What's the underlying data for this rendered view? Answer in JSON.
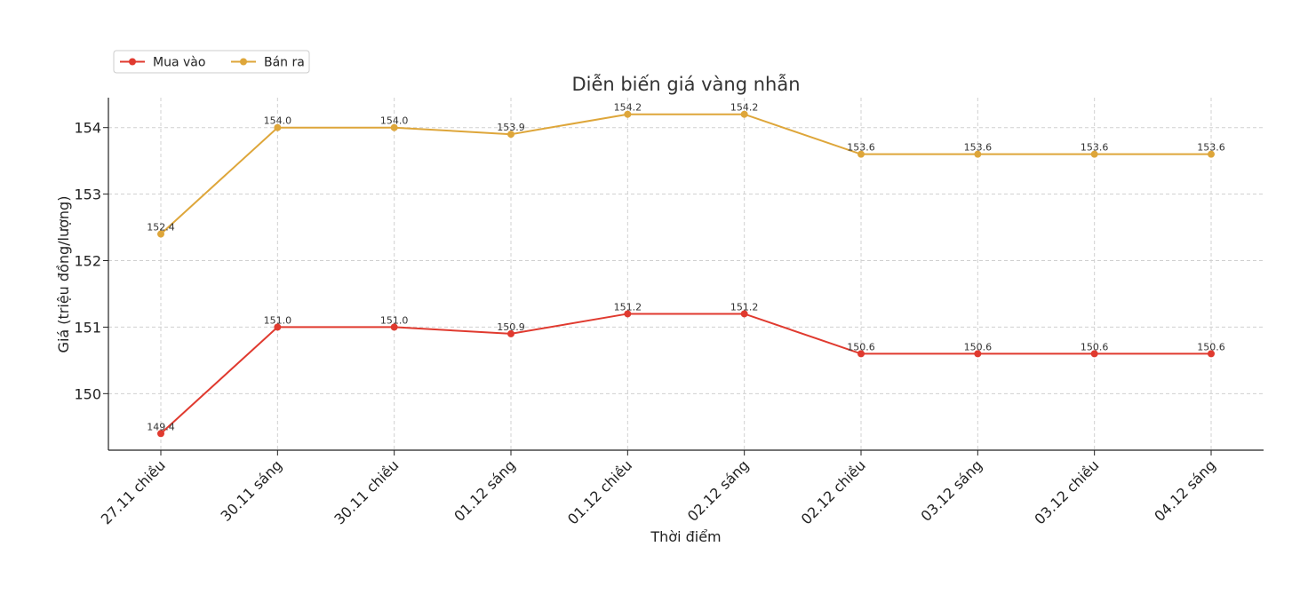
{
  "chart_data": {
    "type": "line",
    "title": "Diễn biến giá vàng nhẫn",
    "xlabel": "Thời điểm",
    "ylabel": "Giá (triệu đồng/lượng)",
    "categories": [
      "27.11 chiều",
      "30.11 sáng",
      "30.11 chiều",
      "01.12 sáng",
      "01.12 chiều",
      "02.12 sáng",
      "02.12 chiều",
      "03.12 sáng",
      "03.12 chiều",
      "04.12 sáng"
    ],
    "ylim": [
      149.15,
      154.45
    ],
    "yticks": [
      150,
      151,
      152,
      153,
      154
    ],
    "grid": true,
    "legend_position": "top-left",
    "series": [
      {
        "name": "Mua vào",
        "color": "#e03a2f",
        "values": [
          149.4,
          151.0,
          151.0,
          150.9,
          151.2,
          151.2,
          150.6,
          150.6,
          150.6,
          150.6
        ],
        "labels": [
          "149.4",
          "151.0",
          "151.0",
          "150.9",
          "151.2",
          "151.2",
          "150.6",
          "150.6",
          "150.6",
          "150.6"
        ]
      },
      {
        "name": "Bán ra",
        "color": "#dea63a",
        "values": [
          152.4,
          154.0,
          154.0,
          153.9,
          154.2,
          154.2,
          153.6,
          153.6,
          153.6,
          153.6
        ],
        "labels": [
          "152.4",
          "154.0",
          "154.0",
          "153.9",
          "154.2",
          "154.2",
          "153.6",
          "153.6",
          "153.6",
          "153.6"
        ]
      }
    ]
  }
}
